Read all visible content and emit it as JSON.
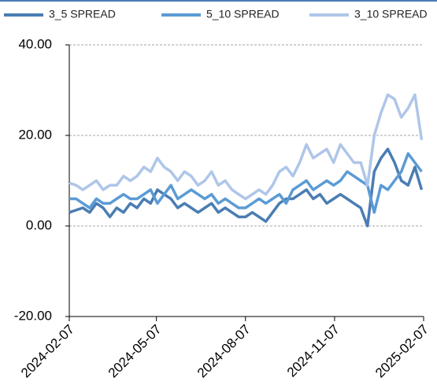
{
  "chart_data": {
    "type": "line",
    "x": [
      "2024-02-07",
      "2024-02-14",
      "2024-02-21",
      "2024-02-28",
      "2024-03-06",
      "2024-03-13",
      "2024-03-20",
      "2024-03-27",
      "2024-04-03",
      "2024-04-10",
      "2024-04-17",
      "2024-04-24",
      "2024-05-01",
      "2024-05-08",
      "2024-05-15",
      "2024-05-22",
      "2024-05-29",
      "2024-06-05",
      "2024-06-12",
      "2024-06-19",
      "2024-06-26",
      "2024-07-03",
      "2024-07-10",
      "2024-07-17",
      "2024-07-24",
      "2024-07-31",
      "2024-08-07",
      "2024-08-14",
      "2024-08-21",
      "2024-08-28",
      "2024-09-04",
      "2024-09-11",
      "2024-09-18",
      "2024-09-25",
      "2024-10-02",
      "2024-10-09",
      "2024-10-16",
      "2024-10-23",
      "2024-10-30",
      "2024-11-06",
      "2024-11-13",
      "2024-11-20",
      "2024-11-27",
      "2024-12-04",
      "2024-12-11",
      "2024-12-18",
      "2024-12-25",
      "2025-01-01",
      "2025-01-08",
      "2025-01-15",
      "2025-01-22",
      "2025-01-29",
      "2025-02-05"
    ],
    "series": [
      {
        "name": "3_5 SPREAD",
        "color": "#4a7db3",
        "values": [
          3,
          3.5,
          4,
          3,
          5,
          4,
          2,
          4,
          3,
          5,
          4,
          6,
          5,
          8,
          7,
          6,
          4,
          5,
          4,
          3,
          4,
          5,
          3,
          4,
          3,
          2,
          2,
          3,
          2,
          1,
          3,
          5,
          6,
          6,
          7,
          8,
          6,
          7,
          5,
          6,
          7,
          6,
          5,
          4,
          0,
          12,
          15,
          17,
          14,
          10,
          9,
          13,
          8
        ]
      },
      {
        "name": "5_10 SPREAD",
        "color": "#5b9bd5",
        "values": [
          6,
          6,
          5,
          4,
          6,
          5,
          5,
          6,
          7,
          6,
          6,
          7,
          8,
          5,
          7,
          9,
          6,
          7,
          8,
          7,
          6,
          7,
          5,
          6,
          5,
          4,
          4,
          5,
          6,
          5,
          6,
          7,
          5,
          8,
          9,
          10,
          8,
          9,
          10,
          9,
          10,
          12,
          11,
          10,
          9,
          3,
          9,
          8,
          10,
          12,
          16,
          14,
          12
        ]
      },
      {
        "name": "3_10 SPREAD",
        "color": "#aec6e8",
        "values": [
          9.5,
          9,
          8,
          9,
          10,
          8,
          9,
          9,
          11,
          10,
          11,
          13,
          12,
          15,
          13,
          12,
          10,
          12,
          11,
          9,
          10,
          12,
          9,
          10,
          8,
          7,
          6,
          7,
          8,
          7,
          9,
          12,
          13,
          11,
          14,
          18,
          15,
          16,
          17,
          14,
          18,
          16,
          14,
          14,
          9,
          20,
          25,
          29,
          28,
          24,
          26,
          29,
          19
        ]
      }
    ],
    "xlim": [
      "2024-02-07",
      "2025-02-07"
    ],
    "xticks": [
      "2024-02-07",
      "2024-05-07",
      "2024-08-07",
      "2024-11-07",
      "2025-02-07"
    ],
    "ylim": [
      -20,
      40
    ],
    "yticks": [
      {
        "value": -20,
        "label": "-20.00"
      },
      {
        "value": 0,
        "label": "0.00"
      },
      {
        "value": 20,
        "label": "20.00"
      },
      {
        "value": 40,
        "label": "40.00"
      }
    ],
    "grid": true,
    "legend": "top"
  }
}
